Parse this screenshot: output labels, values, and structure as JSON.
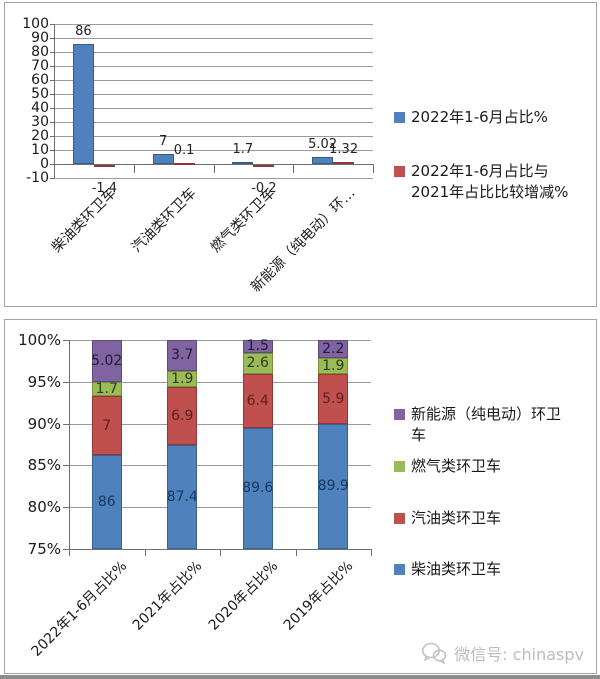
{
  "watermark": {
    "text": "微信号: chinaspv",
    "color": "#bcbcbc"
  },
  "chart_data": [
    {
      "type": "bar",
      "title": "",
      "categories": [
        "柴油类环卫车",
        "汽油类环卫车",
        "燃气类环卫车",
        "新能源（纯电动）环…"
      ],
      "series": [
        {
          "name": "2022年1-6月占比%",
          "color": "#4F81BD",
          "border": "#385D8A",
          "label_color": "#222222",
          "values": [
            86,
            7,
            1.7,
            5.02
          ]
        },
        {
          "name": "2022年1-6月占比与2021年占比比较增减%",
          "color": "#C0504D",
          "border": "#8C3836",
          "label_color": "#222222",
          "values": [
            -1.4,
            0.1,
            -0.2,
            1.32
          ]
        }
      ],
      "ylim": [
        -10,
        100
      ],
      "ytick_step": 10,
      "ytick_suffix": "",
      "grid": true,
      "legend_position": "right"
    },
    {
      "type": "stacked-bar-100",
      "title": "",
      "categories": [
        "2022年1-6月占比%",
        "2021年占比%",
        "2020年占比%",
        "2019年占比%"
      ],
      "series": [
        {
          "name": "柴油类环卫车",
          "color": "#4F81BD",
          "border": "#39618F",
          "label_color": "#17375E",
          "values": [
            86,
            87.4,
            89.6,
            89.9
          ]
        },
        {
          "name": "汽油类环卫车",
          "color": "#C0504D",
          "border": "#943634",
          "label_color": "#5A1F1E",
          "values": [
            7,
            6.9,
            6.4,
            5.9
          ]
        },
        {
          "name": "燃气类环卫车",
          "color": "#9BBB59",
          "border": "#76923C",
          "label_color": "#2f3d14",
          "values": [
            1.7,
            1.9,
            2.6,
            1.9
          ]
        },
        {
          "name": "新能源（纯电动）环卫车",
          "color": "#8064A2",
          "border": "#5F497A",
          "label_color": "#201a33",
          "values": [
            5.02,
            3.7,
            1.5,
            2.2
          ]
        }
      ],
      "ylim": [
        75,
        100
      ],
      "ytick_step": 5,
      "ytick_suffix": "%",
      "grid": true,
      "legend_position": "right",
      "legend_reverse": true
    }
  ]
}
